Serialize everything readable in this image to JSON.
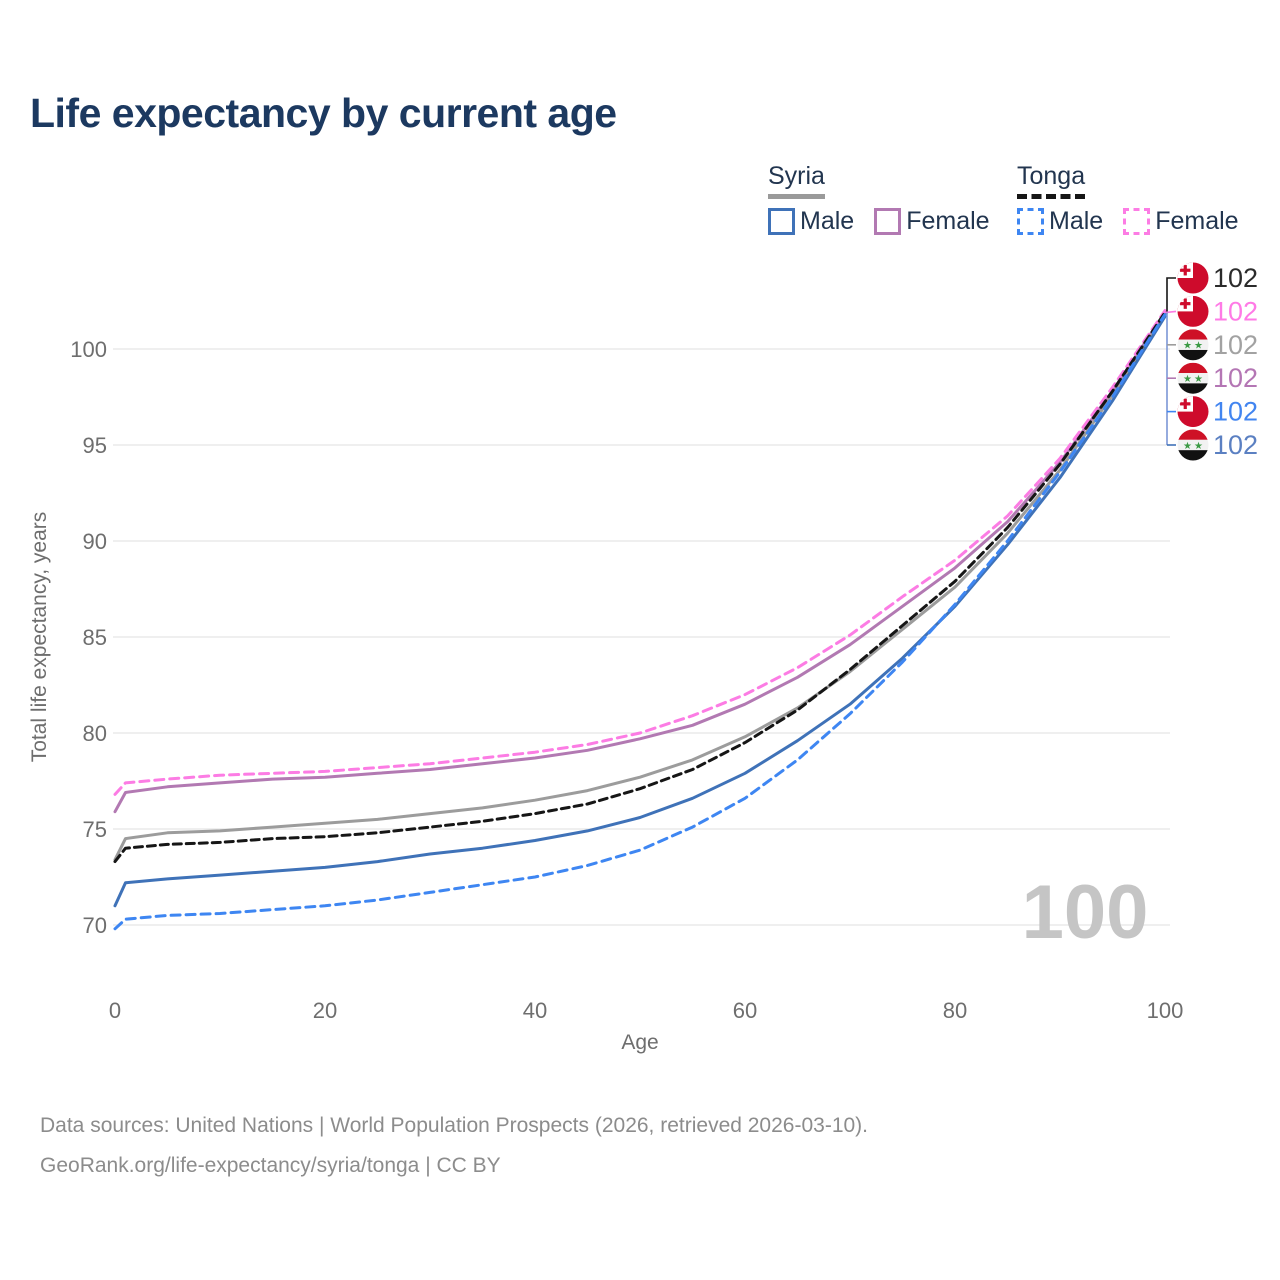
{
  "title": "Life expectancy by current age",
  "watermark": "100",
  "legend": {
    "groups": [
      {
        "name": "Syria",
        "underline_style": "solid",
        "underline_color": "#9a9a9a",
        "items": [
          {
            "label": "Male",
            "color": "#3F72B8",
            "dashed": false
          },
          {
            "label": "Female",
            "color": "#B279B2",
            "dashed": false
          }
        ]
      },
      {
        "name": "Tonga",
        "underline_style": "dashed",
        "underline_color": "#161616",
        "items": [
          {
            "label": "Male",
            "color": "#3E86F2",
            "dashed": true
          },
          {
            "label": "Female",
            "color": "#FC7CE4",
            "dashed": true
          }
        ]
      }
    ]
  },
  "footer": {
    "line1": "Data sources: United Nations | World Population Prospects (2026, retrieved 2026-03-10).",
    "line2": "GeoRank.org/life-expectancy/syria/tonga | CC BY"
  },
  "chart_data": {
    "type": "line",
    "title": "Life expectancy by current age",
    "xlabel": "Age",
    "ylabel": "Total life expectancy, years",
    "xticks": [
      0,
      20,
      40,
      60,
      80,
      100
    ],
    "yticks": [
      70,
      75,
      80,
      85,
      90,
      95,
      100
    ],
    "xlim": [
      0,
      100
    ],
    "ylim": [
      69.5,
      103
    ],
    "grid": "horizontal-only",
    "axis_text_color": "#6e6e6e",
    "grid_color": "#eaeaea",
    "legend_position": "top-right",
    "series": [
      {
        "name": "Tonga all",
        "country": "Tonga",
        "flag": "tonga",
        "group": "all",
        "color": "#161616",
        "label_color": "#2b2b2b",
        "dash": "dashed",
        "end_label": "102",
        "points": [
          [
            0,
            73.3
          ],
          [
            1,
            74.0
          ],
          [
            5,
            74.2
          ],
          [
            10,
            74.3
          ],
          [
            15,
            74.5
          ],
          [
            20,
            74.6
          ],
          [
            25,
            74.8
          ],
          [
            30,
            75.1
          ],
          [
            35,
            75.4
          ],
          [
            40,
            75.8
          ],
          [
            45,
            76.3
          ],
          [
            50,
            77.1
          ],
          [
            55,
            78.1
          ],
          [
            60,
            79.5
          ],
          [
            65,
            81.2
          ],
          [
            70,
            83.3
          ],
          [
            75,
            85.6
          ],
          [
            80,
            87.9
          ],
          [
            85,
            90.7
          ],
          [
            90,
            94.0
          ],
          [
            95,
            97.8
          ],
          [
            100,
            101.9
          ]
        ]
      },
      {
        "name": "Tonga female",
        "country": "Tonga",
        "flag": "tonga",
        "group": "female",
        "color": "#FC7CE4",
        "label_color": "#ff7ae6",
        "dash": "dashed",
        "end_label": "102",
        "points": [
          [
            0,
            76.8
          ],
          [
            1,
            77.4
          ],
          [
            5,
            77.6
          ],
          [
            10,
            77.8
          ],
          [
            15,
            77.9
          ],
          [
            20,
            78.0
          ],
          [
            25,
            78.2
          ],
          [
            30,
            78.4
          ],
          [
            35,
            78.7
          ],
          [
            40,
            79.0
          ],
          [
            45,
            79.4
          ],
          [
            50,
            80.0
          ],
          [
            55,
            80.9
          ],
          [
            60,
            82.0
          ],
          [
            65,
            83.4
          ],
          [
            70,
            85.1
          ],
          [
            75,
            87.1
          ],
          [
            80,
            89.0
          ],
          [
            85,
            91.3
          ],
          [
            90,
            94.3
          ],
          [
            95,
            98.0
          ],
          [
            100,
            102.0
          ]
        ]
      },
      {
        "name": "Syria all",
        "country": "Syria",
        "flag": "syria",
        "group": "all",
        "color": "#9C9C9C",
        "label_color": "#a2a2a2",
        "dash": "solid",
        "end_label": "102",
        "points": [
          [
            0,
            73.4
          ],
          [
            1,
            74.5
          ],
          [
            5,
            74.8
          ],
          [
            10,
            74.9
          ],
          [
            15,
            75.1
          ],
          [
            20,
            75.3
          ],
          [
            25,
            75.5
          ],
          [
            30,
            75.8
          ],
          [
            35,
            76.1
          ],
          [
            40,
            76.5
          ],
          [
            45,
            77.0
          ],
          [
            50,
            77.7
          ],
          [
            55,
            78.6
          ],
          [
            60,
            79.8
          ],
          [
            65,
            81.3
          ],
          [
            70,
            83.2
          ],
          [
            75,
            85.4
          ],
          [
            80,
            87.6
          ],
          [
            85,
            90.4
          ],
          [
            90,
            93.7
          ],
          [
            95,
            97.6
          ],
          [
            100,
            101.8
          ]
        ]
      },
      {
        "name": "Syria female",
        "country": "Syria",
        "flag": "syria",
        "group": "female",
        "color": "#B279B2",
        "label_color": "#b476b4",
        "dash": "solid",
        "end_label": "102",
        "points": [
          [
            0,
            75.9
          ],
          [
            1,
            76.9
          ],
          [
            5,
            77.2
          ],
          [
            10,
            77.4
          ],
          [
            15,
            77.6
          ],
          [
            20,
            77.7
          ],
          [
            25,
            77.9
          ],
          [
            30,
            78.1
          ],
          [
            35,
            78.4
          ],
          [
            40,
            78.7
          ],
          [
            45,
            79.1
          ],
          [
            50,
            79.7
          ],
          [
            55,
            80.4
          ],
          [
            60,
            81.5
          ],
          [
            65,
            82.9
          ],
          [
            70,
            84.6
          ],
          [
            75,
            86.6
          ],
          [
            80,
            88.6
          ],
          [
            85,
            91.0
          ],
          [
            90,
            94.1
          ],
          [
            95,
            97.8
          ],
          [
            100,
            101.9
          ]
        ]
      },
      {
        "name": "Tonga male",
        "country": "Tonga",
        "flag": "tonga",
        "group": "male",
        "color": "#3E86F2",
        "label_color": "#4285f0",
        "dash": "dashed",
        "end_label": "102",
        "points": [
          [
            0,
            69.8
          ],
          [
            1,
            70.3
          ],
          [
            5,
            70.5
          ],
          [
            10,
            70.6
          ],
          [
            15,
            70.8
          ],
          [
            20,
            71.0
          ],
          [
            25,
            71.3
          ],
          [
            30,
            71.7
          ],
          [
            35,
            72.1
          ],
          [
            40,
            72.5
          ],
          [
            45,
            73.1
          ],
          [
            50,
            73.9
          ],
          [
            55,
            75.1
          ],
          [
            60,
            76.6
          ],
          [
            65,
            78.6
          ],
          [
            70,
            81.0
          ],
          [
            75,
            83.7
          ],
          [
            80,
            86.7
          ],
          [
            85,
            90.0
          ],
          [
            90,
            93.6
          ],
          [
            95,
            97.5
          ],
          [
            100,
            101.8
          ]
        ]
      },
      {
        "name": "Syria male",
        "country": "Syria",
        "flag": "syria",
        "group": "male",
        "color": "#3F72B8",
        "label_color": "#5b80c2",
        "dash": "solid",
        "end_label": "102",
        "points": [
          [
            0,
            71.0
          ],
          [
            1,
            72.2
          ],
          [
            5,
            72.4
          ],
          [
            10,
            72.6
          ],
          [
            15,
            72.8
          ],
          [
            20,
            73.0
          ],
          [
            25,
            73.3
          ],
          [
            30,
            73.7
          ],
          [
            35,
            74.0
          ],
          [
            40,
            74.4
          ],
          [
            45,
            74.9
          ],
          [
            50,
            75.6
          ],
          [
            55,
            76.6
          ],
          [
            60,
            77.9
          ],
          [
            65,
            79.6
          ],
          [
            70,
            81.5
          ],
          [
            75,
            83.9
          ],
          [
            80,
            86.6
          ],
          [
            85,
            89.8
          ],
          [
            90,
            93.3
          ],
          [
            95,
            97.3
          ],
          [
            100,
            101.7
          ]
        ]
      }
    ],
    "flag_colors": {
      "tonga_red": "#CE0B2C",
      "syria_red": "#CE1126",
      "syria_green": "#3C9A45",
      "syria_black": "#111111"
    }
  }
}
